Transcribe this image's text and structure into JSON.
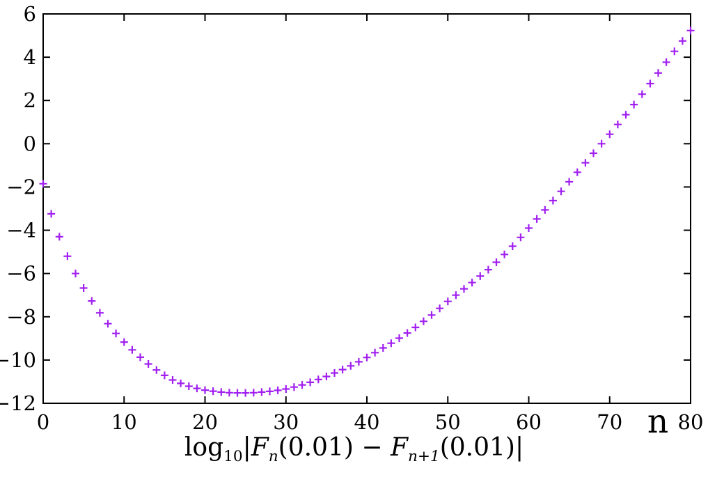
{
  "figure": {
    "background": "#ffffff",
    "axis_color": "#000000"
  },
  "chart_data": {
    "type": "scatter",
    "marker_style": "plus",
    "marker_color": "#a020f0",
    "title": "",
    "xlabel": "n",
    "ylabel": "",
    "caption": "log10|Fn(0.01) − Fn+1(0.01)|",
    "caption_parts": {
      "log": "log",
      "log_sub": "10",
      "lbar": "|",
      "f1": "F",
      "f1_sub": "n",
      "arg1": "(0.01)",
      "minus": " − ",
      "f2": "F",
      "f2_sub": "n+1",
      "arg2": "(0.01)",
      "rbar": "|"
    },
    "xlim": [
      0,
      80
    ],
    "ylim": [
      -12,
      6
    ],
    "grid": false,
    "legend": "none",
    "x_ticks": [
      0,
      10,
      20,
      30,
      40,
      50,
      60,
      70,
      80
    ],
    "x_tick_labels": [
      "0",
      "10",
      "20",
      "30",
      "40",
      "50",
      "60",
      "70",
      "80"
    ],
    "y_ticks": [
      6,
      4,
      2,
      0,
      -2,
      -4,
      -6,
      -8,
      -10,
      -12
    ],
    "y_tick_labels": [
      "6",
      "4",
      "2",
      "0",
      "−2",
      "−4",
      "−6",
      "−8",
      "−10",
      "−12"
    ],
    "series": [
      {
        "name": "log10|Fn(0.01) − Fn+1(0.01)|",
        "x": [
          0,
          1,
          2,
          3,
          4,
          5,
          6,
          7,
          8,
          9,
          10,
          11,
          12,
          13,
          14,
          15,
          16,
          17,
          18,
          19,
          20,
          21,
          22,
          23,
          24,
          25,
          26,
          27,
          28,
          29,
          30,
          31,
          32,
          33,
          34,
          35,
          36,
          37,
          38,
          39,
          40,
          41,
          42,
          43,
          44,
          45,
          46,
          47,
          48,
          49,
          50,
          51,
          52,
          53,
          54,
          55,
          56,
          57,
          58,
          59,
          60,
          61,
          62,
          63,
          64,
          65,
          66,
          67,
          68,
          69,
          70,
          71,
          72,
          73,
          74,
          75,
          76,
          77,
          78,
          79,
          80
        ],
        "y": [
          -1.85,
          -3.24,
          -4.3,
          -5.2,
          -6.0,
          -6.67,
          -7.27,
          -7.82,
          -8.32,
          -8.77,
          -9.17,
          -9.53,
          -9.87,
          -10.18,
          -10.46,
          -10.71,
          -10.92,
          -11.08,
          -11.21,
          -11.31,
          -11.39,
          -11.44,
          -11.48,
          -11.51,
          -11.52,
          -11.52,
          -11.51,
          -11.48,
          -11.45,
          -11.4,
          -11.34,
          -11.25,
          -11.15,
          -11.03,
          -10.9,
          -10.76,
          -10.6,
          -10.44,
          -10.27,
          -10.08,
          -9.88,
          -9.66,
          -9.44,
          -9.22,
          -8.99,
          -8.75,
          -8.49,
          -8.21,
          -7.92,
          -7.61,
          -7.29,
          -7.0,
          -6.71,
          -6.42,
          -6.12,
          -5.82,
          -5.48,
          -5.12,
          -4.74,
          -4.33,
          -3.9,
          -3.48,
          -3.06,
          -2.63,
          -2.2,
          -1.76,
          -1.32,
          -0.88,
          -0.44,
          0.0,
          0.44,
          0.89,
          1.34,
          1.81,
          2.29,
          2.78,
          3.27,
          3.77,
          4.27,
          4.75,
          5.23
        ]
      }
    ]
  }
}
